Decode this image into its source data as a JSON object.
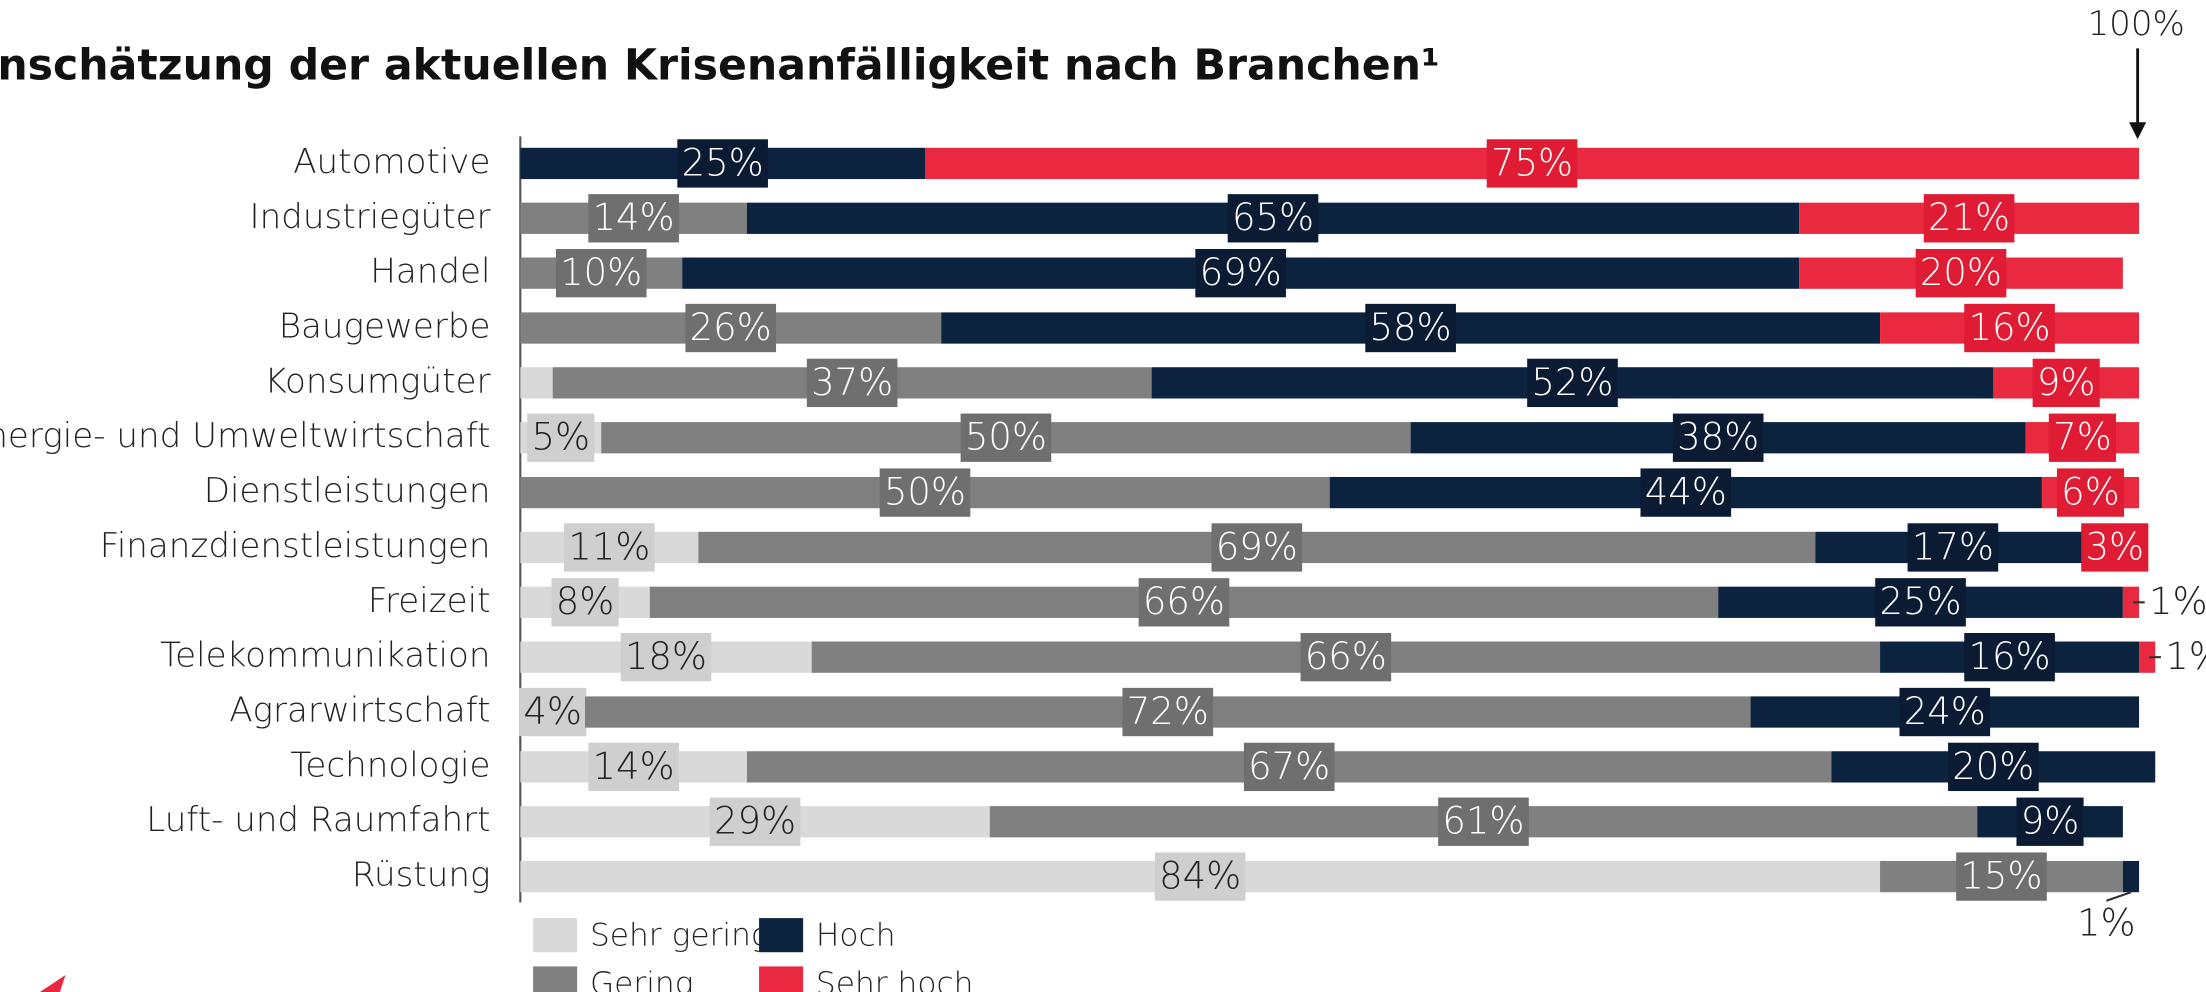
{
  "chart_data": {
    "type": "stacked_barh",
    "title": "nschätzung der aktuellen Krisenanfälligkeit nach Branchen¹",
    "annotation": "100%",
    "categories": [
      "Automotive",
      "Industriegüter",
      "Handel",
      "Baugewerbe",
      "Konsumgüter",
      "Energie- und Umweltwirtschaft",
      "Dienstleistungen",
      "Finanzdienstleistungen",
      "Freizeit",
      "Telekommunikation",
      "Agrarwirtschaft",
      "Technologie",
      "Luft- und Raumfahrt",
      "Rüstung"
    ],
    "xlim": [
      0,
      100
    ],
    "series": [
      {
        "name": "Sehr gering",
        "color": "#d9d9d9",
        "values": [
          0,
          0,
          0,
          0,
          2,
          5,
          0,
          11,
          8,
          18,
          4,
          14,
          29,
          84
        ],
        "value_labels": [
          null,
          null,
          null,
          null,
          null,
          "5%",
          null,
          "11%",
          "8%",
          "18%",
          "4%",
          "14%",
          "29%",
          "84%"
        ]
      },
      {
        "name": "Gering",
        "color": "#808080",
        "values": [
          0,
          14,
          10,
          26,
          37,
          50,
          50,
          69,
          66,
          66,
          72,
          67,
          61,
          15
        ],
        "value_labels": [
          null,
          "14%",
          "10%",
          "26%",
          "37%",
          "50%",
          "50%",
          "69%",
          "66%",
          "66%",
          "72%",
          "67%",
          "61%",
          "15%"
        ]
      },
      {
        "name": "Hoch",
        "color": "#0c2340",
        "values": [
          25,
          65,
          69,
          58,
          52,
          38,
          44,
          17,
          25,
          16,
          24,
          20,
          9,
          1
        ],
        "value_labels": [
          "25%",
          "65%",
          "69%",
          "58%",
          "52%",
          "38%",
          "44%",
          "17%",
          "25%",
          "16%",
          "24%",
          "20%",
          "9%",
          "1%"
        ]
      },
      {
        "name": "Sehr hoch",
        "color": "#e8293f",
        "values": [
          75,
          21,
          20,
          16,
          9,
          7,
          6,
          3,
          1,
          1,
          0,
          0,
          0,
          0
        ],
        "value_labels": [
          "75%",
          "21%",
          "20%",
          "16%",
          "9%",
          "7%",
          "6%",
          "3%",
          "1%",
          "1%",
          null,
          null,
          null,
          null
        ]
      }
    ]
  }
}
